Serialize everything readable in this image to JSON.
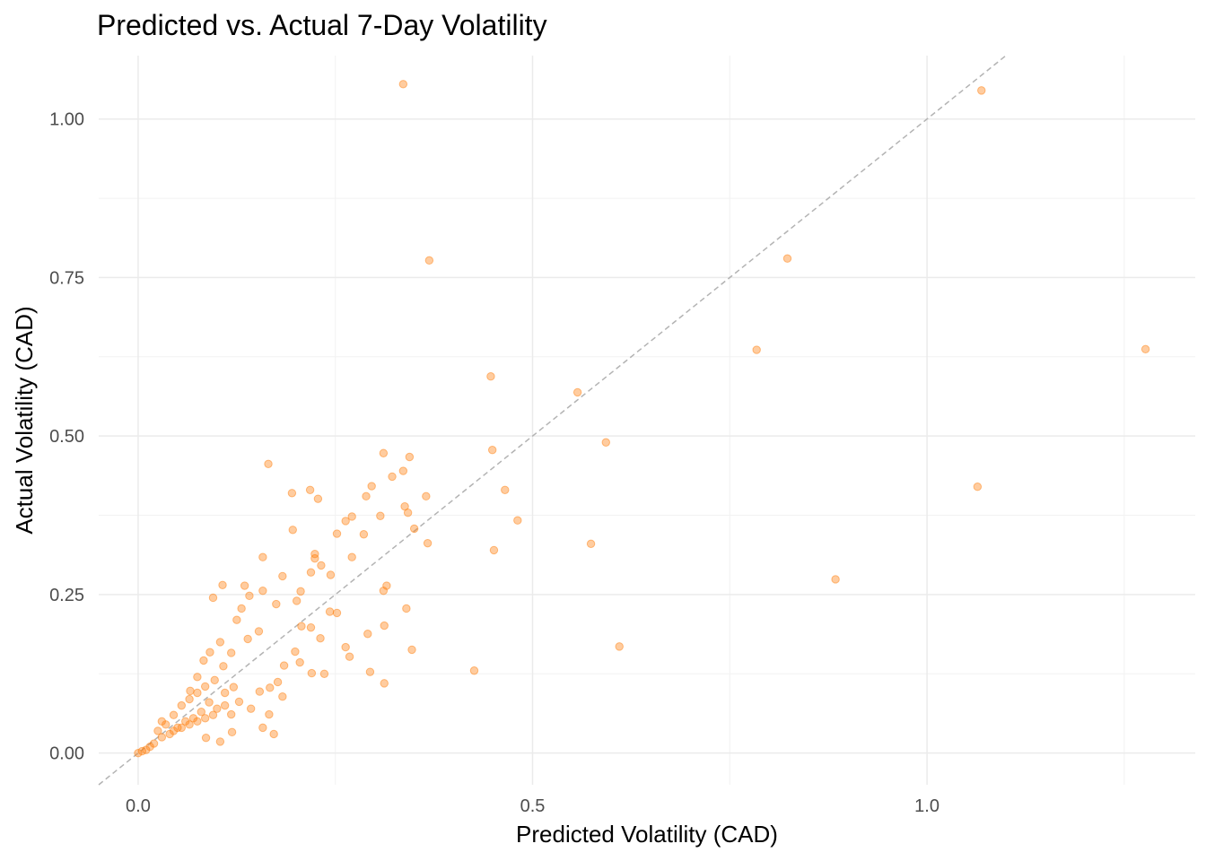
{
  "chart_data": {
    "type": "scatter",
    "title": "Predicted vs. Actual 7-Day Volatility",
    "xlabel": "Predicted Volatility (CAD)",
    "ylabel": "Actual Volatility (CAD)",
    "xlim": [
      -0.05,
      1.34
    ],
    "ylim": [
      -0.05,
      1.1
    ],
    "x_ticks": [
      0.0,
      0.5,
      1.0
    ],
    "x_tick_labels": [
      "0.0",
      "0.5",
      "1.0"
    ],
    "y_ticks": [
      0.0,
      0.25,
      0.5,
      0.75,
      1.0
    ],
    "y_tick_labels": [
      "0.00",
      "0.25",
      "0.50",
      "0.75",
      "1.00"
    ],
    "grid": true,
    "reference_line": {
      "type": "identity",
      "style": "dashed",
      "color": "#b3b3b3"
    },
    "point_color": "#ff7f0e",
    "point_opacity": 0.4,
    "points": [
      [
        0.336,
        1.055
      ],
      [
        1.069,
        1.045
      ],
      [
        0.369,
        0.777
      ],
      [
        0.823,
        0.78
      ],
      [
        0.784,
        0.636
      ],
      [
        1.277,
        0.637
      ],
      [
        0.447,
        0.594
      ],
      [
        0.557,
        0.569
      ],
      [
        0.593,
        0.49
      ],
      [
        0.449,
        0.478
      ],
      [
        0.465,
        0.415
      ],
      [
        0.481,
        0.367
      ],
      [
        0.574,
        0.33
      ],
      [
        0.451,
        0.32
      ],
      [
        1.064,
        0.42
      ],
      [
        0.884,
        0.274
      ],
      [
        0.61,
        0.168
      ],
      [
        0.426,
        0.13
      ],
      [
        0.165,
        0.456
      ],
      [
        0.311,
        0.473
      ],
      [
        0.344,
        0.467
      ],
      [
        0.336,
        0.445
      ],
      [
        0.322,
        0.436
      ],
      [
        0.296,
        0.421
      ],
      [
        0.289,
        0.405
      ],
      [
        0.365,
        0.405
      ],
      [
        0.218,
        0.415
      ],
      [
        0.195,
        0.41
      ],
      [
        0.228,
        0.401
      ],
      [
        0.338,
        0.389
      ],
      [
        0.342,
        0.379
      ],
      [
        0.271,
        0.373
      ],
      [
        0.307,
        0.374
      ],
      [
        0.263,
        0.366
      ],
      [
        0.35,
        0.354
      ],
      [
        0.196,
        0.352
      ],
      [
        0.252,
        0.346
      ],
      [
        0.286,
        0.345
      ],
      [
        0.367,
        0.331
      ],
      [
        0.224,
        0.314
      ],
      [
        0.158,
        0.309
      ],
      [
        0.224,
        0.307
      ],
      [
        0.271,
        0.309
      ],
      [
        0.232,
        0.296
      ],
      [
        0.219,
        0.285
      ],
      [
        0.244,
        0.281
      ],
      [
        0.183,
        0.279
      ],
      [
        0.315,
        0.264
      ],
      [
        0.311,
        0.256
      ],
      [
        0.158,
        0.256
      ],
      [
        0.107,
        0.265
      ],
      [
        0.135,
        0.264
      ],
      [
        0.141,
        0.248
      ],
      [
        0.095,
        0.245
      ],
      [
        0.206,
        0.255
      ],
      [
        0.201,
        0.24
      ],
      [
        0.175,
        0.235
      ],
      [
        0.34,
        0.228
      ],
      [
        0.252,
        0.221
      ],
      [
        0.243,
        0.223
      ],
      [
        0.312,
        0.201
      ],
      [
        0.291,
        0.188
      ],
      [
        0.207,
        0.2
      ],
      [
        0.219,
        0.198
      ],
      [
        0.347,
        0.163
      ],
      [
        0.231,
        0.181
      ],
      [
        0.263,
        0.167
      ],
      [
        0.268,
        0.152
      ],
      [
        0.199,
        0.16
      ],
      [
        0.205,
        0.143
      ],
      [
        0.185,
        0.138
      ],
      [
        0.236,
        0.125
      ],
      [
        0.294,
        0.128
      ],
      [
        0.312,
        0.11
      ],
      [
        0.22,
        0.126
      ],
      [
        0.177,
        0.112
      ],
      [
        0.167,
        0.103
      ],
      [
        0.154,
        0.097
      ],
      [
        0.183,
        0.089
      ],
      [
        0.128,
        0.081
      ],
      [
        0.143,
        0.07
      ],
      [
        0.118,
        0.061
      ],
      [
        0.166,
        0.061
      ],
      [
        0.158,
        0.04
      ],
      [
        0.172,
        0.03
      ],
      [
        0.119,
        0.033
      ],
      [
        0.104,
        0.018
      ],
      [
        0.086,
        0.024
      ],
      [
        0.121,
        0.104
      ],
      [
        0.108,
        0.137
      ],
      [
        0.118,
        0.158
      ],
      [
        0.139,
        0.18
      ],
      [
        0.153,
        0.192
      ],
      [
        0.125,
        0.21
      ],
      [
        0.131,
        0.228
      ],
      [
        0.104,
        0.175
      ],
      [
        0.091,
        0.159
      ],
      [
        0.083,
        0.146
      ],
      [
        0.075,
        0.12
      ],
      [
        0.066,
        0.098
      ],
      [
        0.097,
        0.115
      ],
      [
        0.11,
        0.095
      ],
      [
        0.09,
        0.08
      ],
      [
        0.08,
        0.065
      ],
      [
        0.07,
        0.055
      ],
      [
        0.06,
        0.05
      ],
      [
        0.05,
        0.04
      ],
      [
        0.04,
        0.03
      ],
      [
        0.03,
        0.025
      ],
      [
        0.02,
        0.015
      ],
      [
        0.015,
        0.01
      ],
      [
        0.01,
        0.005
      ],
      [
        0.005,
        0.003
      ],
      [
        0.0,
        0.0
      ],
      [
        0.035,
        0.045
      ],
      [
        0.045,
        0.06
      ],
      [
        0.055,
        0.075
      ],
      [
        0.065,
        0.085
      ],
      [
        0.075,
        0.095
      ],
      [
        0.085,
        0.105
      ],
      [
        0.045,
        0.035
      ],
      [
        0.055,
        0.04
      ],
      [
        0.065,
        0.045
      ],
      [
        0.075,
        0.05
      ],
      [
        0.085,
        0.055
      ],
      [
        0.095,
        0.06
      ],
      [
        0.1,
        0.07
      ],
      [
        0.11,
        0.075
      ],
      [
        0.025,
        0.035
      ],
      [
        0.03,
        0.05
      ]
    ]
  }
}
